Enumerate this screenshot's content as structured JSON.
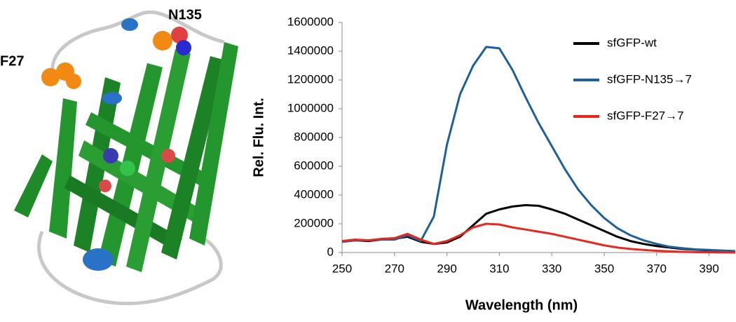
{
  "figure_labels": [
    "F27",
    "N135"
  ],
  "chart_data": {
    "type": "line",
    "y_label": "Rel. Flu. Int.",
    "x_label": "Wavelength (nm)",
    "x": [
      250,
      255,
      260,
      265,
      270,
      275,
      280,
      285,
      290,
      295,
      300,
      305,
      310,
      315,
      320,
      325,
      330,
      335,
      340,
      345,
      350,
      355,
      360,
      365,
      370,
      375,
      380,
      385,
      390,
      395,
      400
    ],
    "series": [
      {
        "name": "sfGFP-wt",
        "color": "#000000",
        "values": [
          75000,
          85000,
          80000,
          90000,
          95000,
          110000,
          75000,
          60000,
          70000,
          110000,
          190000,
          270000,
          300000,
          320000,
          330000,
          325000,
          300000,
          270000,
          230000,
          190000,
          150000,
          110000,
          80000,
          60000,
          45000,
          35000,
          25000,
          20000,
          15000,
          12000,
          10000
        ]
      },
      {
        "name": "sfGFP-N135→7",
        "color": "#1f5f9a",
        "values": [
          75000,
          85000,
          85000,
          90000,
          90000,
          120000,
          80000,
          250000,
          750000,
          1100000,
          1300000,
          1430000,
          1420000,
          1270000,
          1080000,
          900000,
          740000,
          580000,
          440000,
          330000,
          240000,
          170000,
          120000,
          85000,
          60000,
          40000,
          30000,
          22000,
          18000,
          14000,
          10000
        ]
      },
      {
        "name": "sfGFP-F27→7",
        "color": "#e8281e",
        "values": [
          80000,
          90000,
          85000,
          95000,
          100000,
          130000,
          90000,
          60000,
          80000,
          120000,
          175000,
          200000,
          195000,
          175000,
          160000,
          145000,
          130000,
          110000,
          90000,
          70000,
          50000,
          35000,
          25000,
          18000,
          12000,
          8000,
          5000,
          3000,
          2000,
          1000,
          0
        ]
      }
    ],
    "xlim": [
      250,
      400
    ],
    "xticks": [
      250,
      270,
      290,
      310,
      330,
      350,
      370,
      390
    ],
    "ylim": [
      0,
      1600000
    ],
    "yticks": [
      0,
      200000,
      400000,
      600000,
      800000,
      1000000,
      1200000,
      1400000,
      1600000
    ],
    "legend": "upper right"
  }
}
